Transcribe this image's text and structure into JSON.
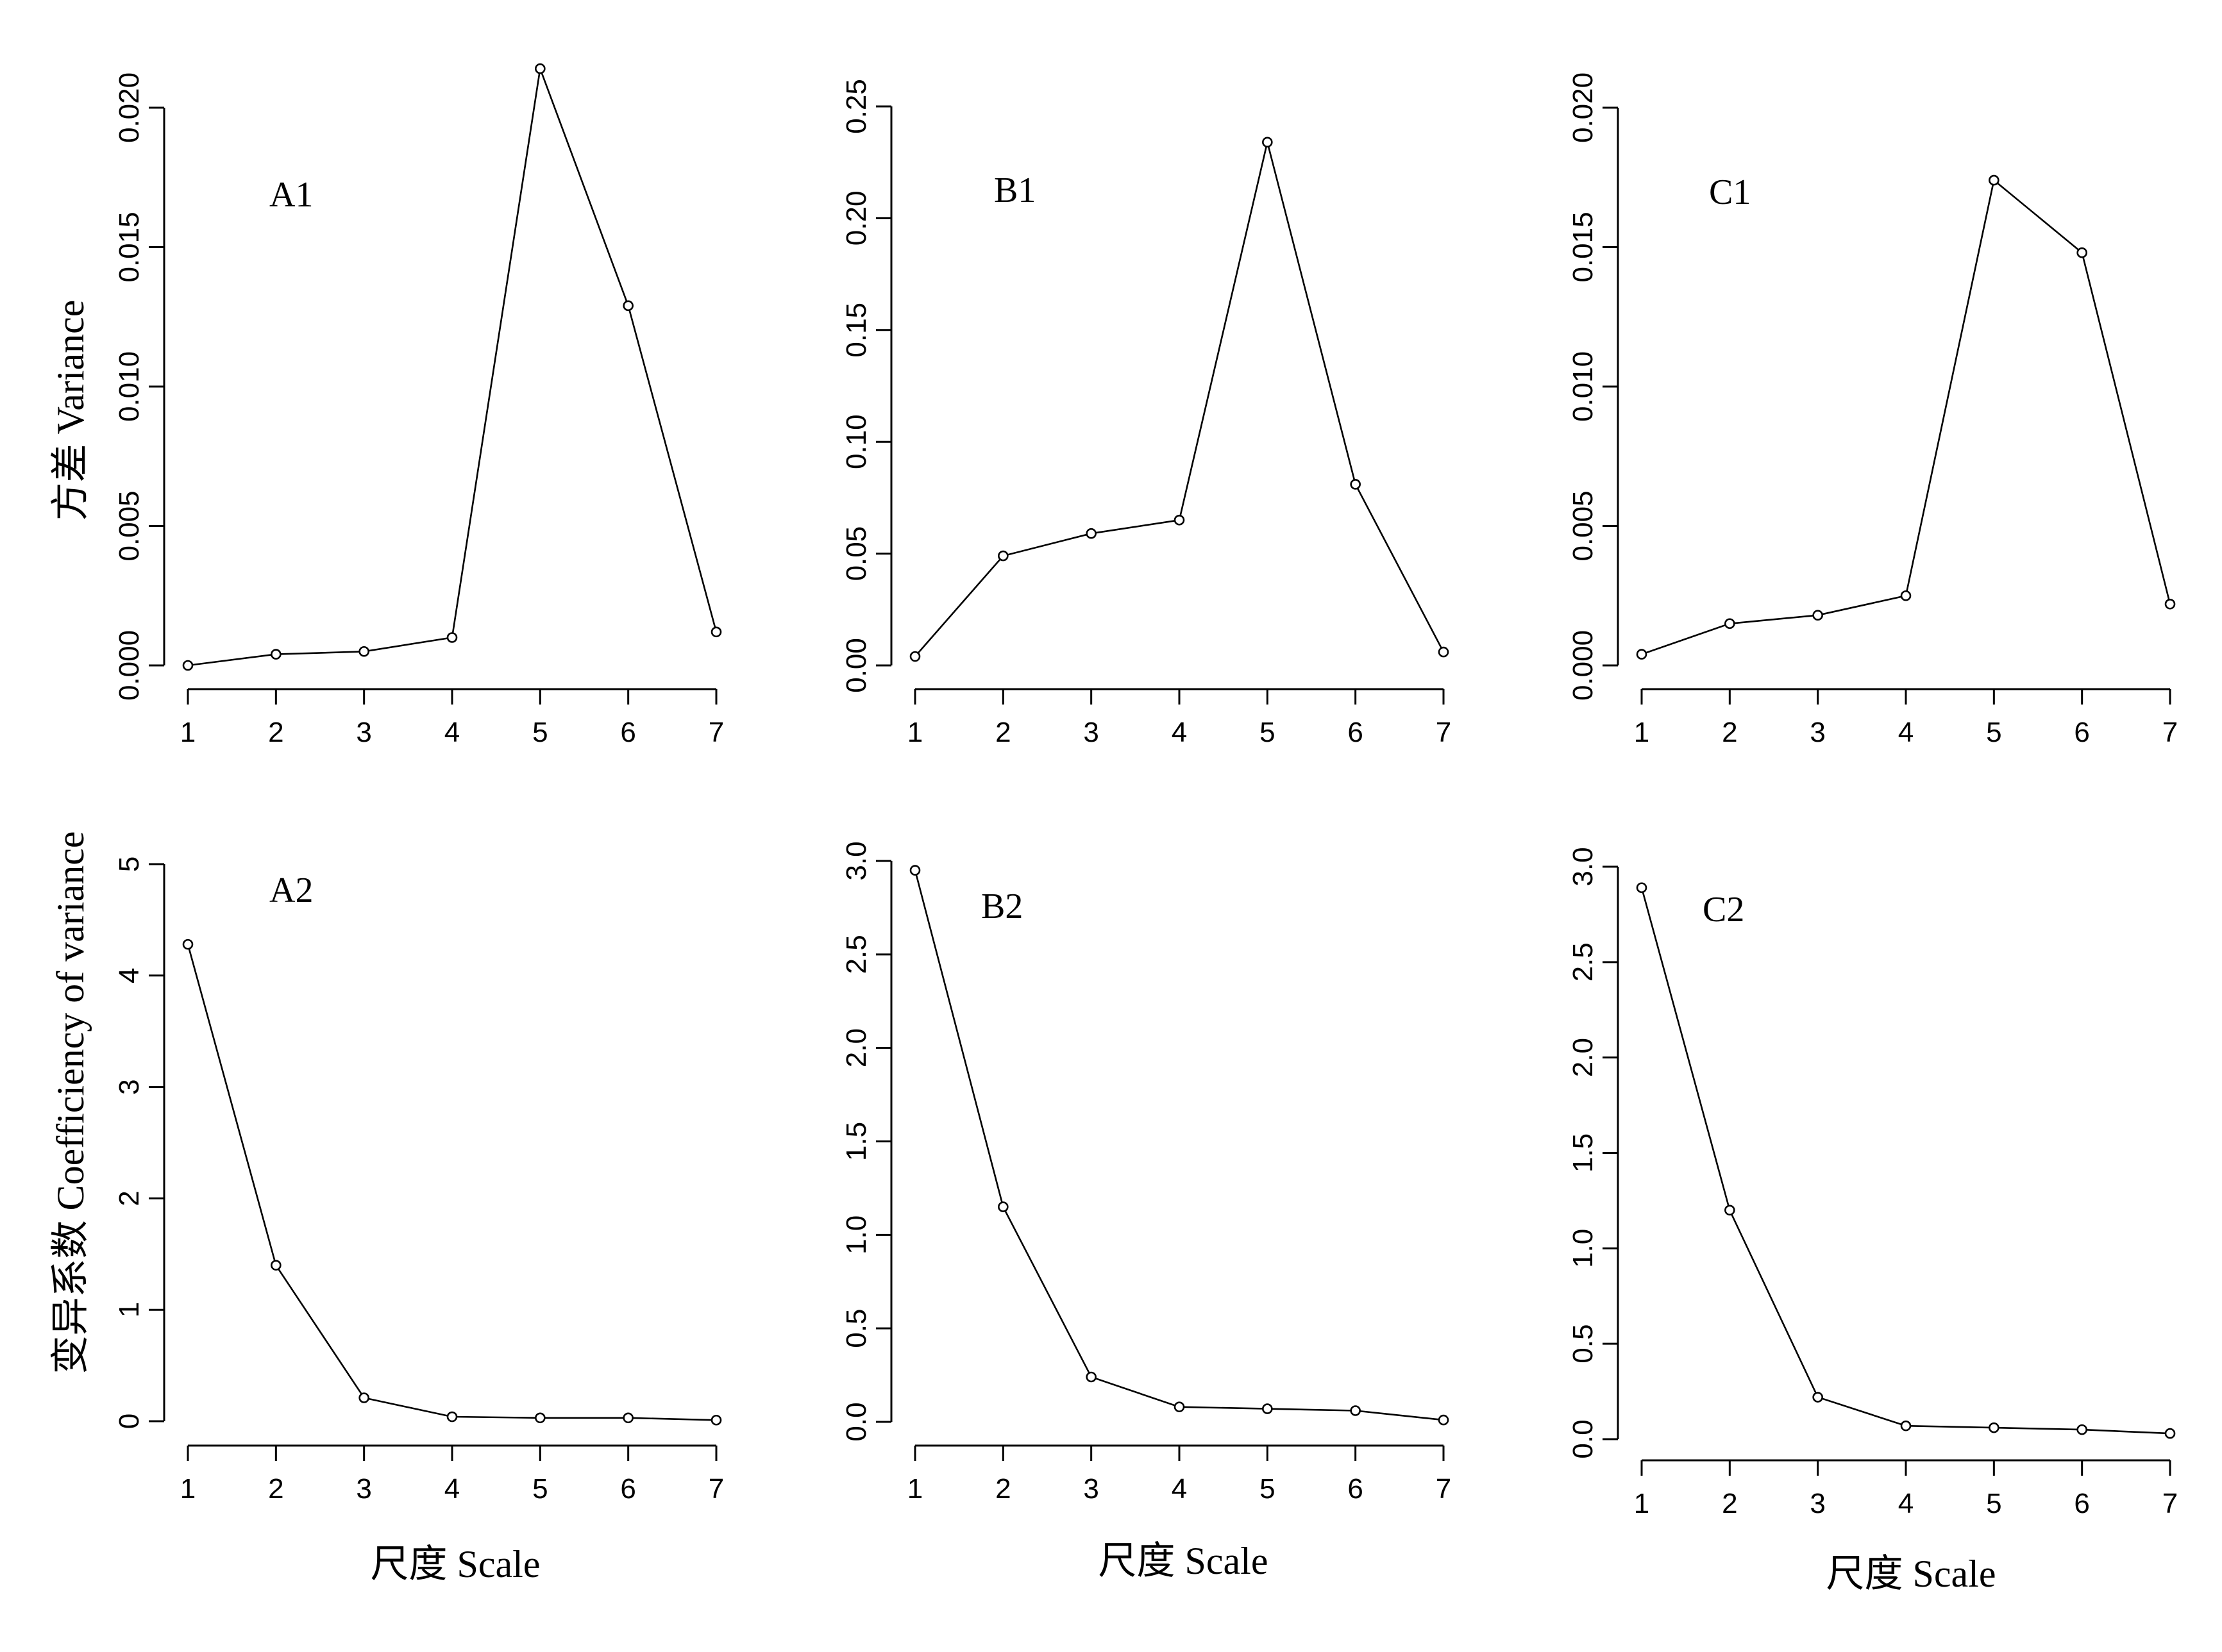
{
  "figure": {
    "ylabel_top": "方差 Variance",
    "ylabel_bottom": "变异系数 Coefficiency of variance",
    "xlabel": "尺度 Scale"
  },
  "chart_data": [
    {
      "type": "line",
      "panel_label": "A1",
      "x": [
        1,
        2,
        3,
        4,
        5,
        6,
        7
      ],
      "values": [
        0.0,
        0.0004,
        0.0005,
        0.001,
        0.0214,
        0.0129,
        0.0012
      ],
      "xlabel": "",
      "ylabel": "方差 Variance",
      "xlim": [
        1,
        7
      ],
      "ylim": [
        0.0,
        0.02
      ],
      "x_ticks": [
        "1",
        "2",
        "3",
        "4",
        "5",
        "6",
        "7"
      ],
      "y_ticks": [
        "0.000",
        "0.005",
        "0.010",
        "0.015",
        "0.020"
      ],
      "grid": false
    },
    {
      "type": "line",
      "panel_label": "B1",
      "x": [
        1,
        2,
        3,
        4,
        5,
        6,
        7
      ],
      "values": [
        0.004,
        0.049,
        0.059,
        0.065,
        0.234,
        0.081,
        0.006
      ],
      "xlabel": "",
      "ylabel": "",
      "xlim": [
        1,
        7
      ],
      "ylim": [
        0.0,
        0.25
      ],
      "x_ticks": [
        "1",
        "2",
        "3",
        "4",
        "5",
        "6",
        "7"
      ],
      "y_ticks": [
        "0.00",
        "0.05",
        "0.10",
        "0.15",
        "0.20",
        "0.25"
      ],
      "grid": false
    },
    {
      "type": "line",
      "panel_label": "C1",
      "x": [
        1,
        2,
        3,
        4,
        5,
        6,
        7
      ],
      "values": [
        0.0004,
        0.0015,
        0.0018,
        0.0025,
        0.0174,
        0.0148,
        0.0022
      ],
      "xlabel": "",
      "ylabel": "",
      "xlim": [
        1,
        7
      ],
      "ylim": [
        0.0,
        0.02
      ],
      "x_ticks": [
        "1",
        "2",
        "3",
        "4",
        "5",
        "6",
        "7"
      ],
      "y_ticks": [
        "0.000",
        "0.005",
        "0.010",
        "0.015",
        "0.020"
      ],
      "grid": false
    },
    {
      "type": "line",
      "panel_label": "A2",
      "x": [
        1,
        2,
        3,
        4,
        5,
        6,
        7
      ],
      "values": [
        4.28,
        1.4,
        0.21,
        0.04,
        0.03,
        0.03,
        0.01
      ],
      "xlabel": "尺度 Scale",
      "ylabel": "变异系数 Coefficiency of variance",
      "xlim": [
        1,
        7
      ],
      "ylim": [
        0,
        5
      ],
      "x_ticks": [
        "1",
        "2",
        "3",
        "4",
        "5",
        "6",
        "7"
      ],
      "y_ticks": [
        "0",
        "1",
        "2",
        "3",
        "4",
        "5"
      ],
      "grid": false
    },
    {
      "type": "line",
      "panel_label": "B2",
      "x": [
        1,
        2,
        3,
        4,
        5,
        6,
        7
      ],
      "values": [
        2.95,
        1.15,
        0.24,
        0.08,
        0.07,
        0.06,
        0.01
      ],
      "xlabel": "尺度 Scale",
      "ylabel": "",
      "xlim": [
        1,
        7
      ],
      "ylim": [
        0.0,
        3.0
      ],
      "x_ticks": [
        "1",
        "2",
        "3",
        "4",
        "5",
        "6",
        "7"
      ],
      "y_ticks": [
        "0.0",
        "0.5",
        "1.0",
        "1.5",
        "2.0",
        "2.5",
        "3.0"
      ],
      "grid": false
    },
    {
      "type": "line",
      "panel_label": "C2",
      "x": [
        1,
        2,
        3,
        4,
        5,
        6,
        7
      ],
      "values": [
        2.89,
        1.2,
        0.22,
        0.07,
        0.06,
        0.05,
        0.03
      ],
      "xlabel": "尺度 Scale",
      "ylabel": "",
      "xlim": [
        1,
        7
      ],
      "ylim": [
        0.0,
        3.0
      ],
      "x_ticks": [
        "1",
        "2",
        "3",
        "4",
        "5",
        "6",
        "7"
      ],
      "y_ticks": [
        "0.0",
        "0.5",
        "1.0",
        "1.5",
        "2.0",
        "2.5",
        "3.0"
      ],
      "grid": false
    }
  ]
}
